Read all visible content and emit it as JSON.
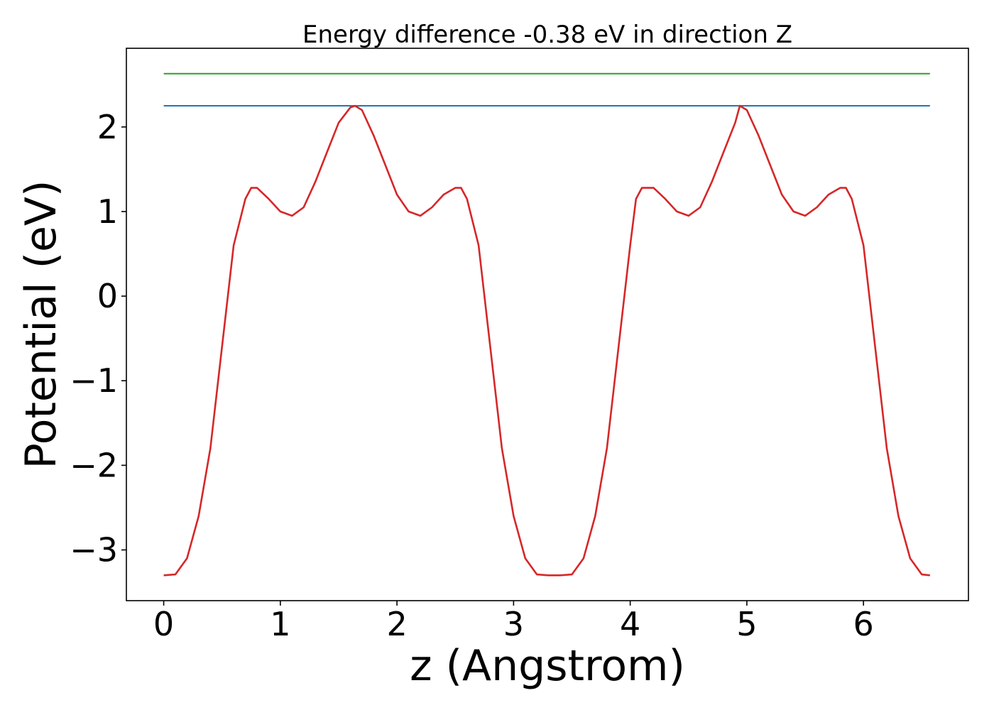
{
  "chart_data": {
    "type": "line",
    "title": "Energy difference -0.38 eV in direction Z",
    "xlabel": "z (Angstrom)",
    "ylabel": "Potential (eV)",
    "xlim": [
      -0.32,
      6.9
    ],
    "ylim": [
      -3.6,
      2.93
    ],
    "xticks": [
      0,
      1,
      2,
      3,
      4,
      5,
      6
    ],
    "xtick_labels": [
      "0",
      "1",
      "2",
      "3",
      "4",
      "5",
      "6"
    ],
    "yticks": [
      -3,
      -2,
      -1,
      0,
      1,
      2
    ],
    "ytick_labels": [
      "−3",
      "−2",
      "−1",
      "0",
      "1",
      "2"
    ],
    "grid": false,
    "series": [
      {
        "color": "#2ca02c",
        "x": [
          0,
          6.57
        ],
        "y": [
          2.63,
          2.63
        ]
      },
      {
        "color": "#1f77b4",
        "x": [
          0,
          6.57
        ],
        "y": [
          2.25,
          2.25
        ]
      },
      {
        "color": "#d62728",
        "x": [
          0,
          0.1,
          0.2,
          0.3,
          0.4,
          0.5,
          0.6,
          0.7,
          0.75,
          0.8,
          0.9,
          1.0,
          1.1,
          1.2,
          1.3,
          1.4,
          1.5,
          1.6,
          1.64,
          1.7,
          1.8,
          1.9,
          2.0,
          2.1,
          2.2,
          2.3,
          2.4,
          2.5,
          2.55,
          2.6,
          2.7,
          2.8,
          2.9,
          3.0,
          3.1,
          3.2,
          3.3,
          3.4,
          3.5,
          3.6,
          3.7,
          3.8,
          3.9,
          4.0,
          4.05,
          4.1,
          4.2,
          4.3,
          4.4,
          4.5,
          4.6,
          4.7,
          4.8,
          4.9,
          4.94,
          5.0,
          5.1,
          5.2,
          5.3,
          5.4,
          5.5,
          5.6,
          5.7,
          5.8,
          5.85,
          5.9,
          6.0,
          6.1,
          6.2,
          6.3,
          6.4,
          6.5,
          6.57
        ],
        "y": [
          -3.3,
          -3.29,
          -3.1,
          -2.6,
          -1.8,
          -0.6,
          0.6,
          1.15,
          1.28,
          1.28,
          1.15,
          1.0,
          0.95,
          1.05,
          1.35,
          1.7,
          2.05,
          2.23,
          2.25,
          2.2,
          1.9,
          1.55,
          1.2,
          1.0,
          0.95,
          1.05,
          1.2,
          1.28,
          1.28,
          1.15,
          0.6,
          -0.6,
          -1.8,
          -2.6,
          -3.1,
          -3.29,
          -3.3,
          -3.3,
          -3.29,
          -3.1,
          -2.6,
          -1.8,
          -0.6,
          0.6,
          1.15,
          1.28,
          1.28,
          1.15,
          1.0,
          0.95,
          1.05,
          1.35,
          1.7,
          2.05,
          2.25,
          2.2,
          1.9,
          1.55,
          1.2,
          1.0,
          0.95,
          1.05,
          1.2,
          1.28,
          1.28,
          1.15,
          0.6,
          -0.6,
          -1.8,
          -2.6,
          -3.1,
          -3.29,
          -3.3
        ]
      }
    ]
  }
}
